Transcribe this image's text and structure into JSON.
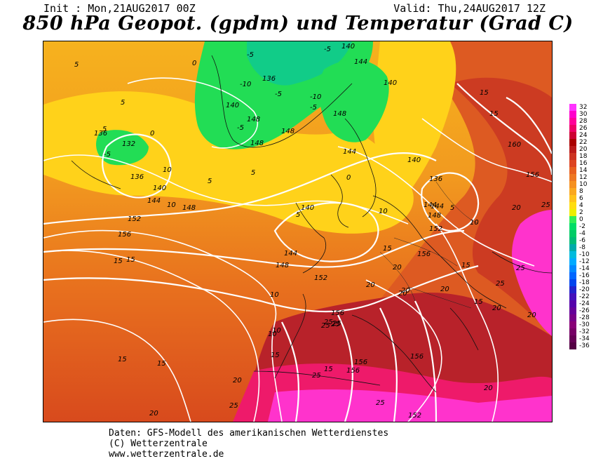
{
  "header": {
    "init": "Init : Mon,21AUG2017 00Z",
    "valid": "Valid: Thu,24AUG2017 12Z",
    "title": "850 hPa Geopot. (gpdm) und Temperatur (Grad C)"
  },
  "legend": {
    "values": [
      "32",
      "30",
      "28",
      "26",
      "24",
      "22",
      "20",
      "18",
      "16",
      "14",
      "12",
      "10",
      "8",
      "6",
      "4",
      "2",
      "0",
      "-2",
      "-4",
      "-6",
      "-8",
      "-10",
      "-12",
      "-14",
      "-16",
      "-18",
      "-20",
      "-22",
      "-24",
      "-26",
      "-28",
      "-30",
      "-32",
      "-34",
      "-36"
    ],
    "colors": [
      "#ff33ff",
      "#ff00cc",
      "#ff0099",
      "#ee0066",
      "#cc0033",
      "#aa0000",
      "#bb1a1a",
      "#cc3322",
      "#dd4422",
      "#e8601f",
      "#ee7722",
      "#f59020",
      "#faa81f",
      "#ffc21a",
      "#ffdd10",
      "#eeee00",
      "#33ee55",
      "#00dd66",
      "#00cc66",
      "#00bb77",
      "#00aaaa",
      "#00bbdd",
      "#00aaff",
      "#0088ff",
      "#0066ff",
      "#0044ee",
      "#2222cc",
      "#4411bb",
      "#5500aa",
      "#660099",
      "#770088",
      "#880077",
      "#770066",
      "#660055",
      "#550044"
    ]
  },
  "map_labels": {
    "geopotential": [
      "140",
      "144",
      "136",
      "132",
      "136",
      "140",
      "144",
      "148",
      "152",
      "156",
      "140",
      "148",
      "136",
      "148",
      "144",
      "148",
      "140",
      "144",
      "148",
      "152",
      "156",
      "144",
      "140",
      "136",
      "144",
      "148",
      "152",
      "156",
      "160",
      "156",
      "156",
      "156",
      "156",
      "152",
      "140",
      "148"
    ],
    "temperature": [
      "5",
      "0",
      "-5",
      "-5",
      "-10",
      "-5",
      "-5",
      "5",
      "-5",
      "5",
      "0",
      "10",
      "5",
      "5",
      "15",
      "15",
      "15",
      "10",
      "15",
      "10",
      "20",
      "20",
      "25",
      "25",
      "25",
      "20",
      "25",
      "25",
      "20",
      "15",
      "15",
      "20",
      "20",
      "25",
      "25",
      "20",
      "15",
      "25",
      "25",
      "20",
      "20",
      "15",
      "10",
      "10",
      "15",
      "10",
      "5",
      "0",
      "-5",
      "-10",
      "5",
      "10",
      "15",
      "15",
      "20",
      "20",
      "25"
    ]
  },
  "footer": {
    "line1": "Daten: GFS-Modell des amerikanischen Wetterdienstes",
    "line2": "(C) Wetterzentrale",
    "line3": "www.wetterzentrale.de"
  }
}
